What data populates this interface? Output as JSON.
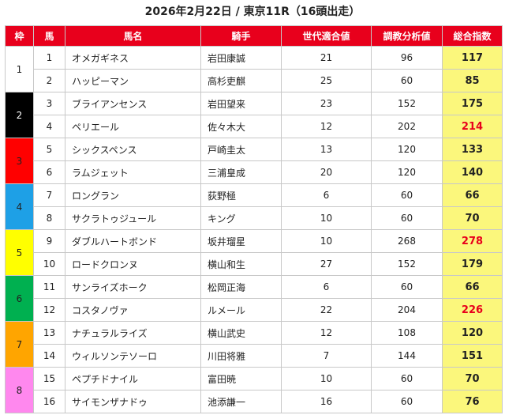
{
  "title": "2026年2月22日 / 東京11R（16頭出走）",
  "headers": {
    "waku": "枠",
    "uma": "馬",
    "name": "馬名",
    "jockey": "騎手",
    "age_fit": "世代適合値",
    "training": "調教分析値",
    "total": "総合指数"
  },
  "colors": {
    "header_bg": "#e8001c",
    "total_bg": "#fbf77c",
    "highlight_text": "#e8001c",
    "waku": {
      "1": "#ffffff",
      "2": "#000000",
      "3": "#ff0000",
      "4": "#1e90ff",
      "5": "#ffff00",
      "6": "#00b050",
      "7": "#ffa500",
      "8": "#ff88ff"
    }
  },
  "waku": [
    {
      "label": "1",
      "color": "#ffffff",
      "text_color": "#222222"
    },
    {
      "label": "2",
      "color": "#000000",
      "text_color": "#ffffff"
    },
    {
      "label": "3",
      "color": "#ff0000",
      "text_color": "#222222"
    },
    {
      "label": "4",
      "color": "#1ea0e6",
      "text_color": "#222222"
    },
    {
      "label": "5",
      "color": "#ffff00",
      "text_color": "#222222"
    },
    {
      "label": "6",
      "color": "#00b050",
      "text_color": "#222222"
    },
    {
      "label": "7",
      "color": "#ffa500",
      "text_color": "#222222"
    },
    {
      "label": "8",
      "color": "#ff88ee",
      "text_color": "#222222"
    }
  ],
  "rows": [
    {
      "num": "1",
      "name": "オメガギネス",
      "jockey": "岩田康誠",
      "age": "21",
      "train": "96",
      "total": "117",
      "hi": false
    },
    {
      "num": "2",
      "name": "ハッピーマン",
      "jockey": "高杉吏麒",
      "age": "25",
      "train": "60",
      "total": "85",
      "hi": false
    },
    {
      "num": "3",
      "name": "ブライアンセンス",
      "jockey": "岩田望来",
      "age": "23",
      "train": "152",
      "total": "175",
      "hi": false
    },
    {
      "num": "4",
      "name": "ペリエール",
      "jockey": "佐々木大",
      "age": "12",
      "train": "202",
      "total": "214",
      "hi": true
    },
    {
      "num": "5",
      "name": "シックスペンス",
      "jockey": "戸崎圭太",
      "age": "13",
      "train": "120",
      "total": "133",
      "hi": false
    },
    {
      "num": "6",
      "name": "ラムジェット",
      "jockey": "三浦皇成",
      "age": "20",
      "train": "120",
      "total": "140",
      "hi": false
    },
    {
      "num": "7",
      "name": "ロングラン",
      "jockey": "荻野極",
      "age": "6",
      "train": "60",
      "total": "66",
      "hi": false
    },
    {
      "num": "8",
      "name": "サクラトゥジュール",
      "jockey": "キング",
      "age": "10",
      "train": "60",
      "total": "70",
      "hi": false
    },
    {
      "num": "9",
      "name": "ダブルハートボンド",
      "jockey": "坂井瑠星",
      "age": "10",
      "train": "268",
      "total": "278",
      "hi": true
    },
    {
      "num": "10",
      "name": "ロードクロンヌ",
      "jockey": "横山和生",
      "age": "27",
      "train": "152",
      "total": "179",
      "hi": false
    },
    {
      "num": "11",
      "name": "サンライズホーク",
      "jockey": "松岡正海",
      "age": "6",
      "train": "60",
      "total": "66",
      "hi": false
    },
    {
      "num": "12",
      "name": "コスタノヴァ",
      "jockey": "ルメール",
      "age": "22",
      "train": "204",
      "total": "226",
      "hi": true
    },
    {
      "num": "13",
      "name": "ナチュラルライズ",
      "jockey": "横山武史",
      "age": "12",
      "train": "108",
      "total": "120",
      "hi": false
    },
    {
      "num": "14",
      "name": "ウィルソンテソーロ",
      "jockey": "川田将雅",
      "age": "7",
      "train": "144",
      "total": "151",
      "hi": false
    },
    {
      "num": "15",
      "name": "ペプチドナイル",
      "jockey": "富田暁",
      "age": "10",
      "train": "60",
      "total": "70",
      "hi": false
    },
    {
      "num": "16",
      "name": "サイモンザナドゥ",
      "jockey": "池添謙一",
      "age": "16",
      "train": "60",
      "total": "76",
      "hi": false
    }
  ]
}
